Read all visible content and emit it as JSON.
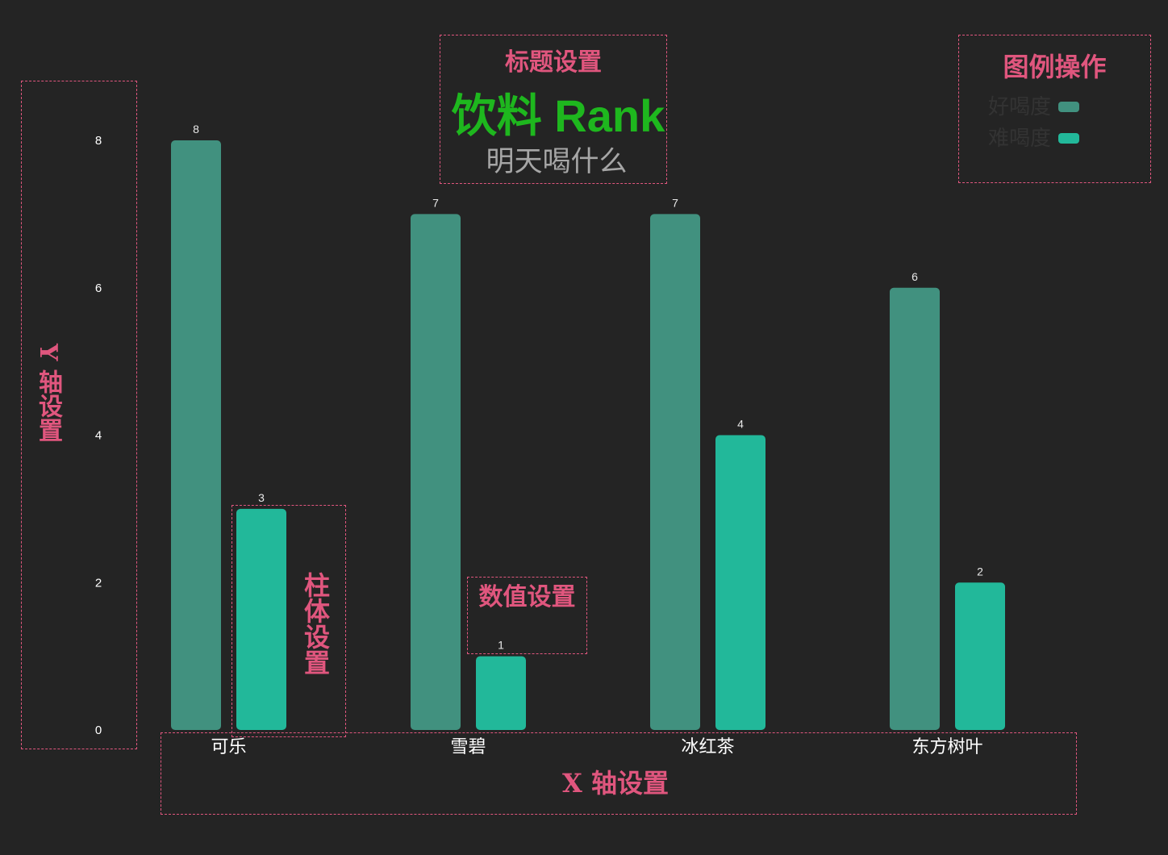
{
  "annotations": {
    "title_settings": "标题设置",
    "legend_ops": "图例操作",
    "y_axis_settings": "Y 轴设置",
    "bar_settings": "柱体设置",
    "value_settings": "数值设置",
    "x_axis_settings": "X 轴设置",
    "color": "#e0567e"
  },
  "chart_data": {
    "type": "bar",
    "title": "饮料 Rank",
    "subtitle": "明天喝什么",
    "title_color": "#1eb71e",
    "categories": [
      "可乐",
      "雪碧",
      "冰红茶",
      "东方树叶"
    ],
    "series": [
      {
        "name": "好喝度",
        "values": [
          8,
          7,
          7,
          6
        ],
        "color": "#41917f"
      },
      {
        "name": "难喝度",
        "values": [
          3,
          1,
          4,
          2
        ],
        "color": "#22b89a"
      }
    ],
    "ylim": [
      0,
      8
    ],
    "yticks": [
      0,
      2,
      4,
      6,
      8
    ],
    "grid": false,
    "legend_position": "top-right",
    "data_labels": true
  }
}
